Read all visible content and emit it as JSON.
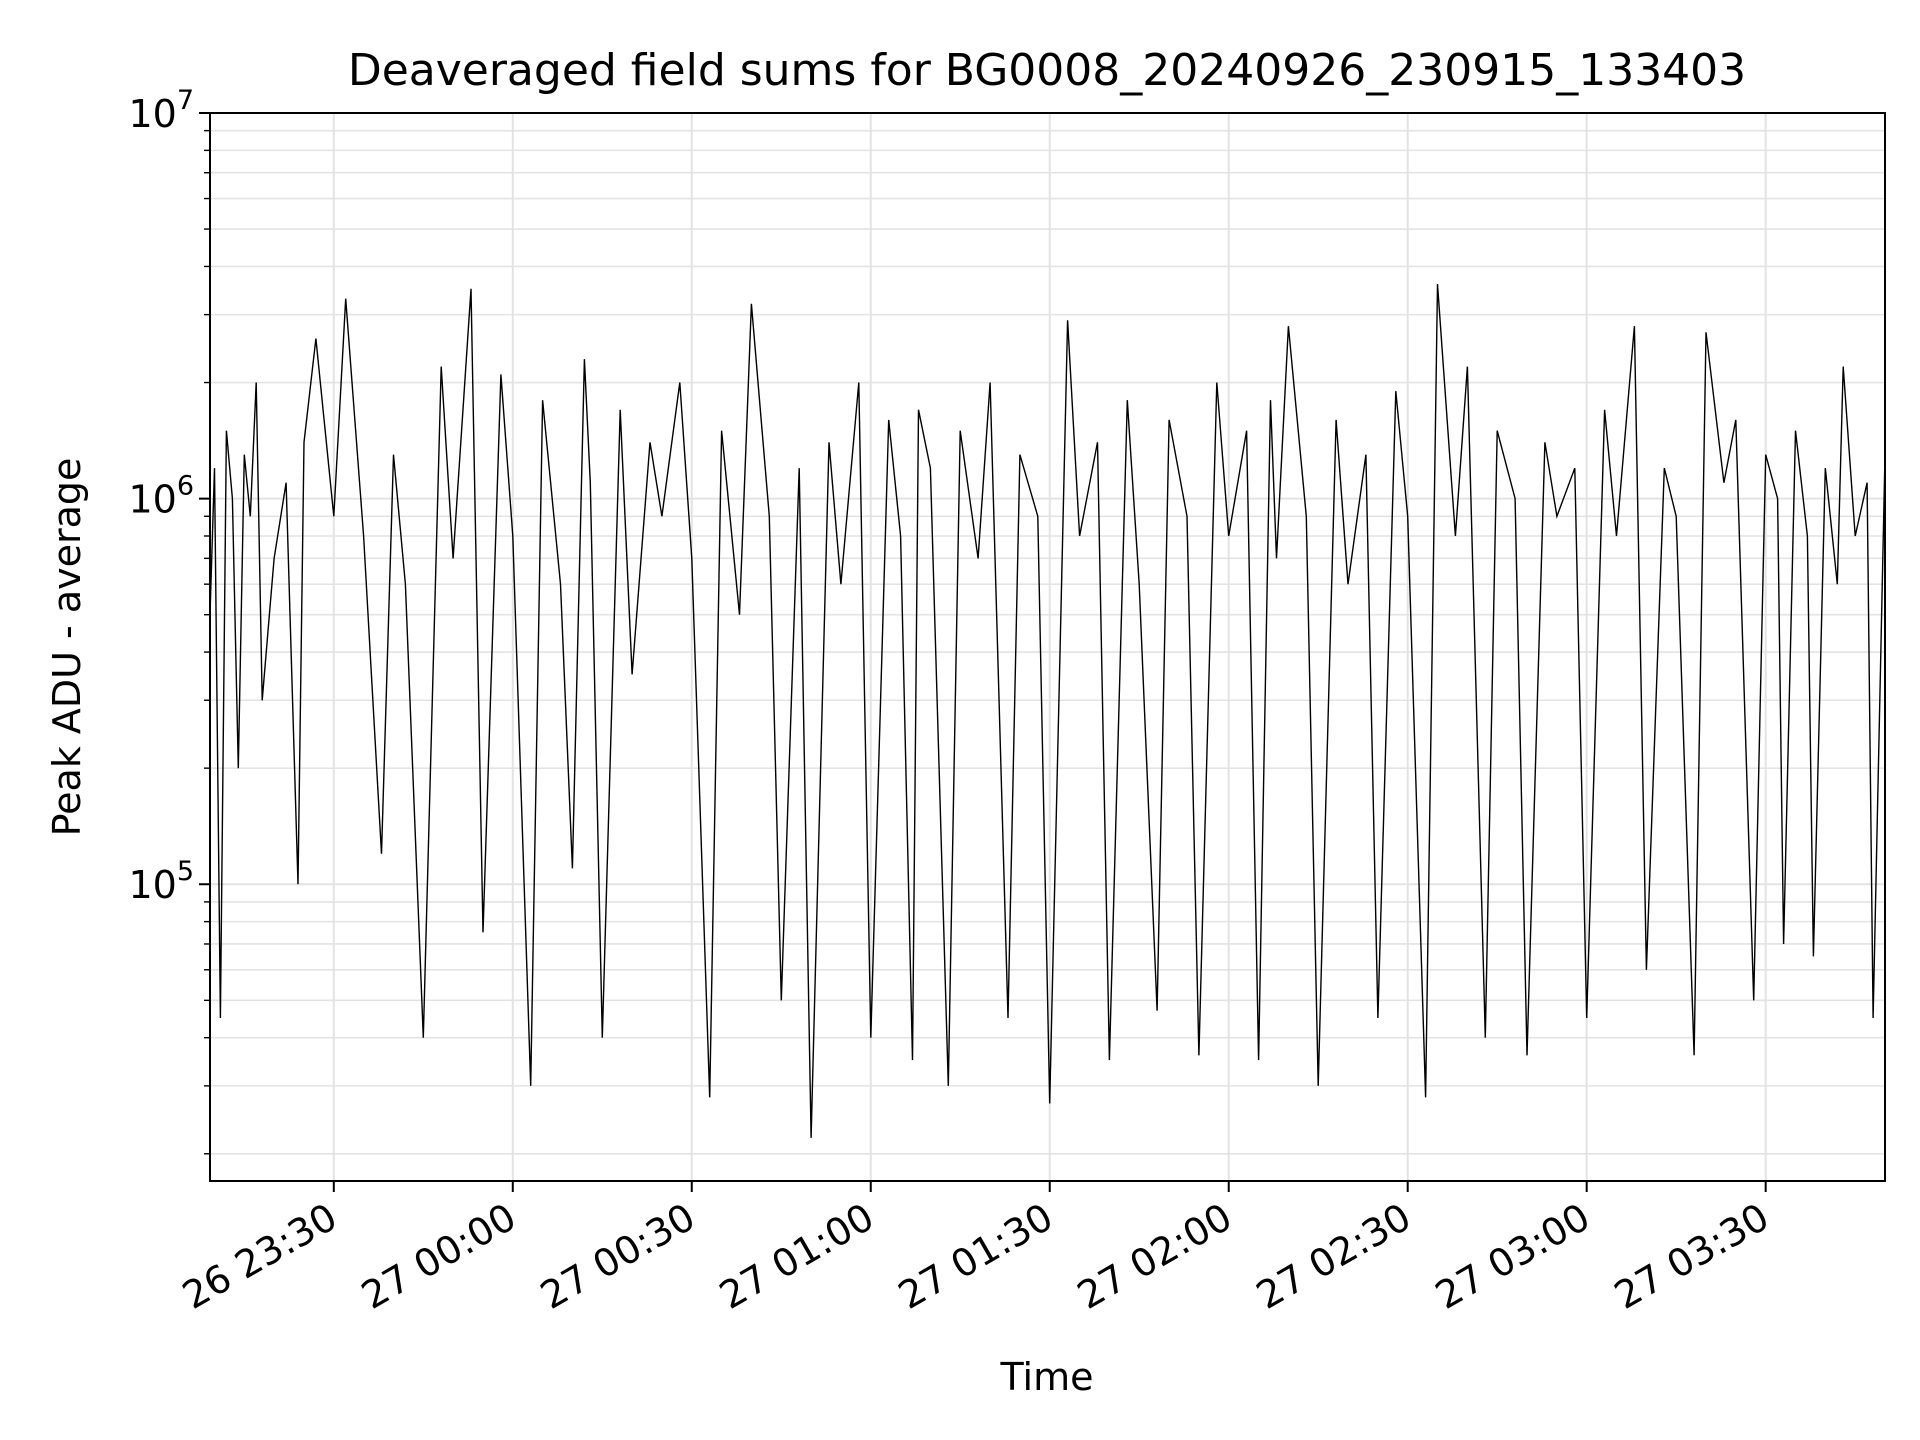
{
  "chart_data": {
    "type": "line",
    "title": "Deaveraged field sums for BG0008_20240926_230915_133403",
    "xlabel": "Time",
    "ylabel": "Peak ADU - average",
    "x_axis": {
      "type": "time",
      "range": [
        "2024-09-26 23:09:15",
        "2024-09-27 03:50:00"
      ],
      "ticks": [
        "26 23:30",
        "27 00:00",
        "27 00:30",
        "27 01:00",
        "27 01:30",
        "27 02:00",
        "27 02:30",
        "27 03:00",
        "27 03:30"
      ],
      "tick_times": [
        "2024-09-26 23:30",
        "2024-09-27 00:00",
        "2024-09-27 00:30",
        "2024-09-27 01:00",
        "2024-09-27 01:30",
        "2024-09-27 02:00",
        "2024-09-27 02:30",
        "2024-09-27 03:00",
        "2024-09-27 03:30"
      ],
      "tick_label_rotation_deg": 30
    },
    "y_axis": {
      "scale": "log",
      "range": [
        17000,
        10000000
      ],
      "major_ticks": [
        {
          "value": 100000,
          "base": "10",
          "exp": "5"
        },
        {
          "value": 1000000,
          "base": "10",
          "exp": "6"
        },
        {
          "value": 10000000,
          "base": "10",
          "exp": "7"
        }
      ]
    },
    "grid": true,
    "line_color": "#000000",
    "grid_color": "#e3e3e3",
    "series": [
      {
        "x": [
          "2024-09-26 23:09:15",
          "2024-09-26 23:10:00",
          "2024-09-26 23:11:00",
          "2024-09-26 23:12:00",
          "2024-09-26 23:13:00",
          "2024-09-26 23:14:00",
          "2024-09-26 23:15:00",
          "2024-09-26 23:16:00",
          "2024-09-26 23:17:00",
          "2024-09-26 23:18:00",
          "2024-09-26 23:20:00",
          "2024-09-26 23:22:00",
          "2024-09-26 23:24:00",
          "2024-09-26 23:25:00",
          "2024-09-26 23:27:00",
          "2024-09-26 23:30:00",
          "2024-09-26 23:32:00",
          "2024-09-26 23:35:00",
          "2024-09-26 23:38:00",
          "2024-09-26 23:40:00",
          "2024-09-26 23:42:00",
          "2024-09-26 23:45:00",
          "2024-09-26 23:48:00",
          "2024-09-26 23:50:00",
          "2024-09-26 23:53:00",
          "2024-09-26 23:55:00",
          "2024-09-26 23:58:00",
          "2024-09-27 00:00:00",
          "2024-09-27 00:03:00",
          "2024-09-27 00:05:00",
          "2024-09-27 00:08:00",
          "2024-09-27 00:10:00",
          "2024-09-27 00:12:00",
          "2024-09-27 00:13:00",
          "2024-09-27 00:15:00",
          "2024-09-27 00:18:00",
          "2024-09-27 00:20:00",
          "2024-09-27 00:23:00",
          "2024-09-27 00:25:00",
          "2024-09-27 00:28:00",
          "2024-09-27 00:30:00",
          "2024-09-27 00:33:00",
          "2024-09-27 00:35:00",
          "2024-09-27 00:38:00",
          "2024-09-27 00:40:00",
          "2024-09-27 00:43:00",
          "2024-09-27 00:45:00",
          "2024-09-27 00:48:00",
          "2024-09-27 00:50:00",
          "2024-09-27 00:53:00",
          "2024-09-27 00:55:00",
          "2024-09-27 00:58:00",
          "2024-09-27 01:00:00",
          "2024-09-27 01:03:00",
          "2024-09-27 01:05:00",
          "2024-09-27 01:07:00",
          "2024-09-27 01:08:00",
          "2024-09-27 01:10:00",
          "2024-09-27 01:13:00",
          "2024-09-27 01:15:00",
          "2024-09-27 01:18:00",
          "2024-09-27 01:20:00",
          "2024-09-27 01:23:00",
          "2024-09-27 01:25:00",
          "2024-09-27 01:28:00",
          "2024-09-27 01:30:00",
          "2024-09-27 01:33:00",
          "2024-09-27 01:35:00",
          "2024-09-27 01:38:00",
          "2024-09-27 01:40:00",
          "2024-09-27 01:43:00",
          "2024-09-27 01:45:00",
          "2024-09-27 01:48:00",
          "2024-09-27 01:50:00",
          "2024-09-27 01:53:00",
          "2024-09-27 01:55:00",
          "2024-09-27 01:58:00",
          "2024-09-27 02:00:00",
          "2024-09-27 02:03:00",
          "2024-09-27 02:05:00",
          "2024-09-27 02:07:00",
          "2024-09-27 02:08:00",
          "2024-09-27 02:10:00",
          "2024-09-27 02:13:00",
          "2024-09-27 02:15:00",
          "2024-09-27 02:18:00",
          "2024-09-27 02:20:00",
          "2024-09-27 02:23:00",
          "2024-09-27 02:25:00",
          "2024-09-27 02:28:00",
          "2024-09-27 02:30:00",
          "2024-09-27 02:33:00",
          "2024-09-27 02:35:00",
          "2024-09-27 02:38:00",
          "2024-09-27 02:40:00",
          "2024-09-27 02:43:00",
          "2024-09-27 02:45:00",
          "2024-09-27 02:48:00",
          "2024-09-27 02:50:00",
          "2024-09-27 02:53:00",
          "2024-09-27 02:55:00",
          "2024-09-27 02:58:00",
          "2024-09-27 03:00:00",
          "2024-09-27 03:03:00",
          "2024-09-27 03:05:00",
          "2024-09-27 03:08:00",
          "2024-09-27 03:10:00",
          "2024-09-27 03:13:00",
          "2024-09-27 03:15:00",
          "2024-09-27 03:18:00",
          "2024-09-27 03:20:00",
          "2024-09-27 03:23:00",
          "2024-09-27 03:25:00",
          "2024-09-27 03:28:00",
          "2024-09-27 03:30:00",
          "2024-09-27 03:32:00",
          "2024-09-27 03:33:00",
          "2024-09-27 03:35:00",
          "2024-09-27 03:37:00",
          "2024-09-27 03:38:00",
          "2024-09-27 03:40:00",
          "2024-09-27 03:42:00",
          "2024-09-27 03:43:00",
          "2024-09-27 03:45:00",
          "2024-09-27 03:47:00",
          "2024-09-27 03:48:00",
          "2024-09-27 03:50:00"
        ],
        "y": [
          500000,
          1200000,
          45000,
          1500000,
          1000000,
          200000,
          1300000,
          900000,
          2000000,
          300000,
          700000,
          1100000,
          100000,
          1400000,
          2600000,
          900000,
          3300000,
          800000,
          120000,
          1300000,
          600000,
          40000,
          2200000,
          700000,
          3500000,
          75000,
          2100000,
          800000,
          30000,
          1800000,
          600000,
          110000,
          2300000,
          1100000,
          40000,
          1700000,
          350000,
          1400000,
          900000,
          2000000,
          700000,
          28000,
          1500000,
          500000,
          3200000,
          900000,
          50000,
          1200000,
          22000,
          1400000,
          600000,
          2000000,
          40000,
          1600000,
          800000,
          35000,
          1700000,
          1200000,
          30000,
          1500000,
          700000,
          2000000,
          45000,
          1300000,
          900000,
          27000,
          2900000,
          800000,
          1400000,
          35000,
          1800000,
          600000,
          47000,
          1600000,
          900000,
          36000,
          2000000,
          800000,
          1500000,
          35000,
          1800000,
          700000,
          2800000,
          900000,
          30000,
          1600000,
          600000,
          1300000,
          45000,
          1900000,
          900000,
          28000,
          3600000,
          800000,
          2200000,
          40000,
          1500000,
          1000000,
          36000,
          1400000,
          900000,
          1200000,
          45000,
          1700000,
          800000,
          2800000,
          60000,
          1200000,
          900000,
          36000,
          2700000,
          1100000,
          1600000,
          50000,
          1300000,
          1000000,
          70000,
          1500000,
          800000,
          65000,
          1200000,
          600000,
          2200000,
          800000,
          1100000,
          45000,
          1300000
        ]
      }
    ]
  }
}
